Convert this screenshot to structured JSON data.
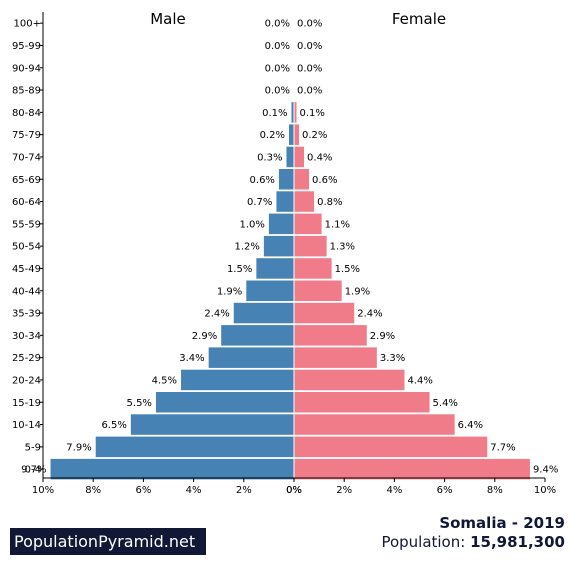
{
  "chart_data": {
    "type": "bar",
    "orientation": "horizontal-pyramid",
    "title": "",
    "left_label": "Male",
    "right_label": "Female",
    "categories": [
      "100+",
      "95-99",
      "90-94",
      "85-89",
      "80-84",
      "75-79",
      "70-74",
      "65-69",
      "60-64",
      "55-59",
      "50-54",
      "45-49",
      "40-44",
      "35-39",
      "30-34",
      "25-29",
      "20-24",
      "15-19",
      "10-14",
      "5-9",
      "0-4"
    ],
    "series": [
      {
        "name": "Male",
        "color": "#4682b4",
        "values": [
          0.0,
          0.0,
          0.0,
          0.0,
          0.1,
          0.2,
          0.3,
          0.6,
          0.7,
          1.0,
          1.2,
          1.5,
          1.9,
          2.4,
          2.9,
          3.4,
          4.5,
          5.5,
          6.5,
          7.9,
          9.7
        ]
      },
      {
        "name": "Female",
        "color": "#f07c8a",
        "values": [
          0.0,
          0.0,
          0.0,
          0.0,
          0.1,
          0.2,
          0.4,
          0.6,
          0.8,
          1.1,
          1.3,
          1.5,
          1.9,
          2.4,
          2.9,
          3.3,
          4.4,
          5.4,
          6.4,
          7.7,
          9.4
        ]
      }
    ],
    "value_labels_male": [
      "0.0%",
      "0.0%",
      "0.0%",
      "0.0%",
      "0.1%",
      "0.2%",
      "0.3%",
      "0.6%",
      "0.7%",
      "1.0%",
      "1.2%",
      "1.5%",
      "1.9%",
      "2.4%",
      "2.9%",
      "3.4%",
      "4.5%",
      "5.5%",
      "6.5%",
      "7.9%",
      "9.7%"
    ],
    "value_labels_female": [
      "0.0%",
      "0.0%",
      "0.0%",
      "0.0%",
      "0.1%",
      "0.2%",
      "0.4%",
      "0.6%",
      "0.8%",
      "1.1%",
      "1.3%",
      "1.5%",
      "1.9%",
      "2.4%",
      "2.9%",
      "3.3%",
      "4.4%",
      "5.4%",
      "6.4%",
      "7.7%",
      "9.4%"
    ],
    "x_ticks_male": [
      "10%",
      "8%",
      "6%",
      "4%",
      "2%",
      "0%"
    ],
    "x_ticks_female": [
      "0%",
      "2%",
      "4%",
      "6%",
      "8%",
      "10%"
    ],
    "xlim": [
      0,
      10
    ],
    "grid": false
  },
  "footer": {
    "site": "PopulationPyramid.net",
    "country_year": "Somalia - 2019",
    "population_label": "Population:",
    "population_value": "15,981,300"
  },
  "colors": {
    "male": "#4682b4",
    "female": "#f07c8a",
    "watermark_bg": "#101836",
    "text": "#101836"
  }
}
